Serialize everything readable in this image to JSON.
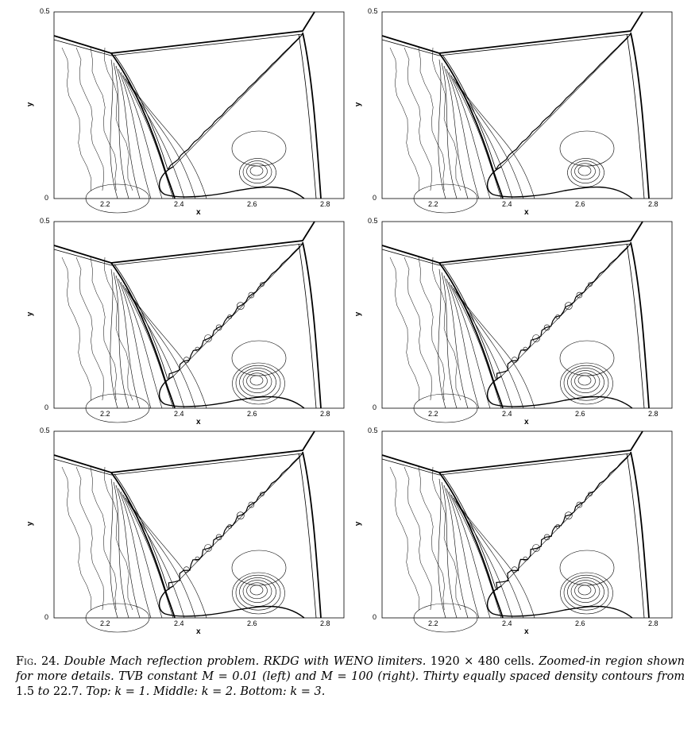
{
  "panels": [
    {
      "x_label": "x",
      "y_label": "y",
      "x_ticks": [
        "2.2",
        "2.4",
        "2.6",
        "2.8"
      ],
      "y_ticks": [
        "0",
        "0.5"
      ]
    },
    {
      "x_label": "x",
      "y_label": "y",
      "x_ticks": [
        "2.2",
        "2.4",
        "2.6",
        "2.8"
      ],
      "y_ticks": [
        "0",
        "0.5"
      ]
    },
    {
      "x_label": "x",
      "y_label": "y",
      "x_ticks": [
        "2.2",
        "2.4",
        "2.6",
        "2.8"
      ],
      "y_ticks": [
        "0",
        "0.5"
      ]
    },
    {
      "x_label": "x",
      "y_label": "y",
      "x_ticks": [
        "2.2",
        "2.4",
        "2.6",
        "2.8"
      ],
      "y_ticks": [
        "0",
        "0.5"
      ]
    },
    {
      "x_label": "x",
      "y_label": "y",
      "x_ticks": [
        "2.2",
        "2.4",
        "2.6",
        "2.8"
      ],
      "y_ticks": [
        "0",
        "0.5"
      ]
    },
    {
      "x_label": "x",
      "y_label": "y",
      "x_ticks": [
        "2.2",
        "2.4",
        "2.6",
        "2.8"
      ],
      "y_ticks": [
        "0",
        "0.5"
      ]
    }
  ],
  "caption": {
    "fig_label": "Fig. 24.",
    "text_1": "Double Mach reflection problem. RKDG with WENO limiters.",
    "grid": "1920 × 480 cells.",
    "text_2": "Zoomed-in region shown for more details. TVB constant",
    "m_left": "M = 0.01",
    "left": "(left) and",
    "m_right": "M = 100",
    "right": "(right).",
    "text_3": "Thirty equally spaced density contours from",
    "range_from": "1.5",
    "to": "to",
    "range_to": "22.7.",
    "k1": "Top: k = 1.",
    "k2": "Middle: k = 2.",
    "k3": "Bottom: k = 3."
  }
}
